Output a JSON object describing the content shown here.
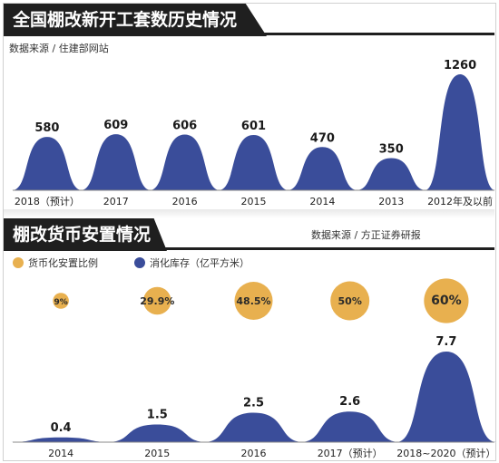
{
  "section1": {
    "title": "全国棚改新开工套数历史情况(万)",
    "source": "数据来源 / 住建部网站"
  },
  "section2": {
    "title": "棚改货币安置情况",
    "source": "数据来源 / 方正证券研报",
    "legend": {
      "ratio": "货币化安置比例",
      "inventory": "消化库存（亿平方米）"
    }
  },
  "colors": {
    "blue": "#3a4d9a",
    "gold": "#e8b04f",
    "dark": "#1f1f1f"
  },
  "chart_data": [
    {
      "type": "area",
      "title": "全国棚改新开工套数历史情况(万)",
      "categories": [
        "2018（预计）",
        "2017",
        "2016",
        "2015",
        "2014",
        "2013",
        "2012年及以前"
      ],
      "values": [
        580,
        609,
        606,
        601,
        470,
        350,
        1260
      ],
      "labels": [
        "580",
        "609",
        "606",
        "601",
        "470",
        "350",
        "1260"
      ],
      "ylim": [
        0,
        1300
      ]
    },
    {
      "type": "area",
      "title": "棚改货币安置情况",
      "categories": [
        "2014",
        "2015",
        "2016",
        "2017（预计）",
        "2018~2020（预计）"
      ],
      "series": [
        {
          "name": "消化库存（亿平方米）",
          "values": [
            0.4,
            1.5,
            2.5,
            2.6,
            7.7
          ],
          "labels": [
            "0.4",
            "1.5",
            "2.5",
            "2.6",
            "7.7"
          ]
        },
        {
          "name": "货币化安置比例",
          "values": [
            9,
            29.9,
            48.5,
            50,
            60
          ],
          "labels": [
            "9%",
            "29.9%",
            "48.5%",
            "50%",
            "60%"
          ]
        }
      ],
      "ylim": [
        0,
        8
      ]
    }
  ]
}
